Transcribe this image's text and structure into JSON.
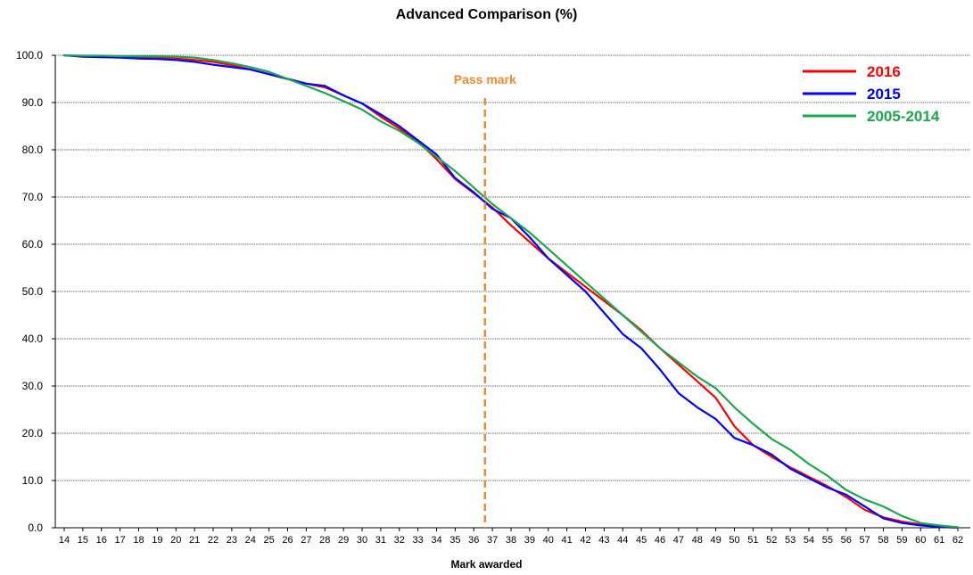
{
  "chart_data": {
    "type": "line",
    "title": "Advanced Comparison (%)",
    "xlabel": "Mark awarded",
    "ylabel": "",
    "ylim": [
      0,
      100
    ],
    "yticks": [
      "0.0",
      "10.0",
      "20.0",
      "30.0",
      "40.0",
      "50.0",
      "60.0",
      "70.0",
      "80.0",
      "90.0",
      "100.0"
    ],
    "x": [
      14,
      15,
      16,
      17,
      18,
      19,
      20,
      21,
      22,
      23,
      24,
      25,
      26,
      27,
      28,
      29,
      30,
      31,
      32,
      33,
      34,
      35,
      36,
      37,
      38,
      39,
      40,
      41,
      42,
      43,
      44,
      45,
      46,
      47,
      48,
      49,
      50,
      51,
      52,
      53,
      54,
      55,
      56,
      57,
      58,
      59,
      60,
      61,
      62
    ],
    "grid": "horizontal",
    "legend_position": "top-right",
    "annotation": {
      "text": "Pass mark",
      "x": 36.6,
      "color": "#f08a30"
    },
    "series": [
      {
        "name": "2016",
        "color": "#ff0000",
        "values": [
          100.0,
          99.8,
          99.8,
          99.7,
          99.6,
          99.5,
          99.3,
          99.0,
          98.6,
          97.9,
          97.0,
          96.0,
          95.0,
          94.0,
          93.2,
          91.5,
          89.8,
          87.0,
          84.5,
          81.8,
          78.0,
          73.8,
          70.8,
          67.8,
          64.0,
          60.5,
          57.0,
          54.0,
          51.0,
          48.0,
          45.0,
          41.8,
          38.0,
          34.5,
          31.0,
          27.5,
          21.5,
          17.5,
          15.0,
          12.8,
          10.8,
          8.8,
          6.5,
          3.8,
          2.2,
          1.3,
          0.7,
          0.4,
          0.1
        ]
      },
      {
        "name": "2015",
        "color": "#0000ff",
        "values": [
          100.0,
          99.7,
          99.6,
          99.5,
          99.3,
          99.2,
          99.0,
          98.6,
          98.0,
          97.5,
          97.0,
          96.0,
          95.0,
          94.0,
          93.5,
          91.5,
          89.8,
          87.5,
          85.0,
          82.0,
          79.0,
          74.0,
          71.0,
          67.5,
          65.5,
          61.5,
          57.0,
          53.5,
          50.0,
          45.5,
          41.0,
          38.0,
          33.5,
          28.5,
          25.5,
          23.0,
          19.0,
          17.5,
          15.5,
          12.5,
          10.5,
          8.5,
          7.0,
          4.5,
          2.0,
          1.0,
          0.5,
          0.2,
          0.0
        ]
      },
      {
        "name": "2005-2014",
        "color": "#1aa84a",
        "values": [
          100.0,
          99.9,
          99.9,
          99.8,
          99.8,
          99.8,
          99.7,
          99.5,
          99.0,
          98.3,
          97.5,
          96.5,
          95.0,
          93.5,
          92.0,
          90.3,
          88.5,
          86.0,
          84.0,
          81.5,
          78.5,
          75.5,
          72.0,
          68.5,
          65.5,
          62.5,
          59.0,
          55.5,
          52.0,
          48.5,
          45.0,
          41.5,
          38.0,
          35.0,
          32.0,
          29.5,
          25.5,
          22.0,
          18.8,
          16.5,
          13.5,
          11.0,
          8.0,
          6.0,
          4.5,
          2.5,
          1.0,
          0.5,
          0.1
        ]
      }
    ]
  }
}
